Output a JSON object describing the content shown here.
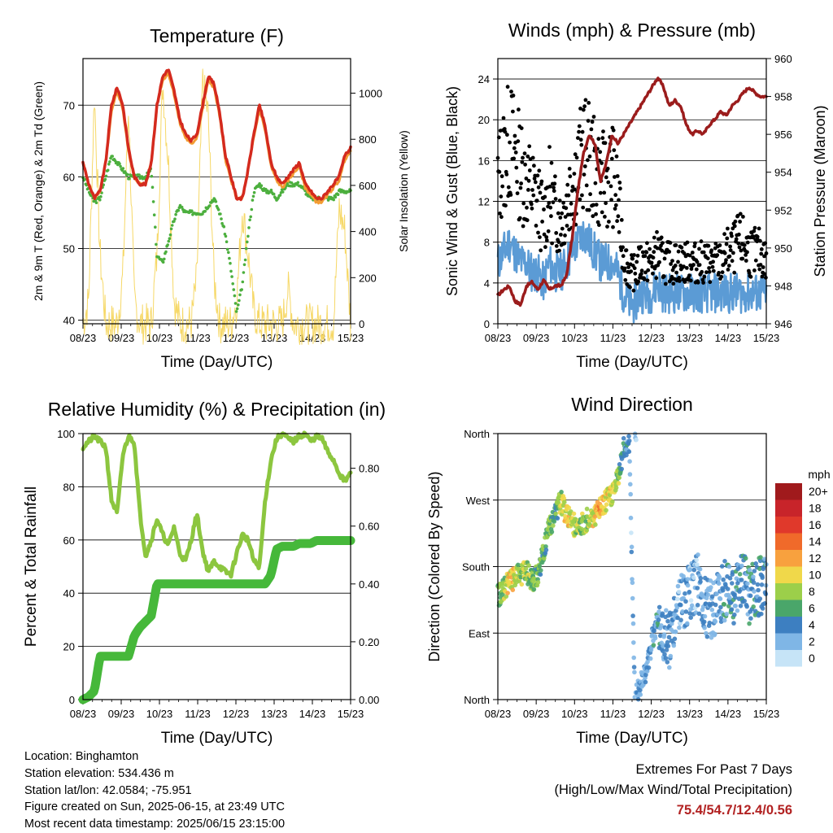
{
  "chart_data": [
    {
      "type": "line",
      "title": "Temperature (F)",
      "xlabel": "Time (Day/UTC)",
      "ylabel": "2m & 9m T (Red, Orange) & 2m Td (Green)",
      "y2label": "Solar Insolation (Yellow)",
      "x_ticks": [
        "08/23",
        "09/23",
        "10/23",
        "11/23",
        "12/23",
        "13/23",
        "14/23",
        "15/23"
      ],
      "ylim": [
        39.5,
        76.5
      ],
      "y_ticks": [
        40,
        50,
        60,
        70
      ],
      "y2lim": [
        0,
        1150
      ],
      "y2_ticks": [
        0,
        200,
        400,
        600,
        800,
        1000
      ],
      "grid": true,
      "colors": {
        "t2m": "#d42a1e",
        "t9m": "#f39c33",
        "td2m": "#4caf3e",
        "solar": "#f6d867"
      },
      "series": [
        {
          "key": "t2m",
          "values": [
            62,
            59,
            57,
            58,
            62,
            70,
            72.5,
            70,
            64,
            60,
            59,
            59,
            62,
            70,
            74,
            75,
            72,
            68,
            66,
            65,
            66,
            70,
            74,
            73,
            69,
            63,
            60,
            57,
            57,
            61,
            66,
            70,
            67,
            62,
            60,
            59,
            60,
            61,
            62,
            59,
            58,
            57,
            57,
            58,
            59,
            60,
            63,
            64
          ]
        },
        {
          "key": "t9m",
          "values": [
            62,
            59,
            57,
            58,
            62,
            69,
            72,
            69.5,
            63.5,
            60,
            59,
            59,
            62,
            70,
            73.5,
            74.5,
            71.5,
            67.5,
            65.5,
            64.5,
            65.5,
            69.5,
            73.5,
            72.5,
            68.5,
            62.5,
            59.5,
            57,
            57,
            61,
            65.5,
            69.5,
            66.5,
            61.5,
            59.5,
            58.5,
            59.5,
            60.5,
            61.5,
            58.5,
            57.5,
            56.5,
            56.5,
            57.5,
            58.5,
            59.5,
            62.5,
            63.5
          ]
        },
        {
          "key": "td2m",
          "values": [
            60,
            58,
            56.5,
            57,
            60,
            63,
            62,
            61,
            60,
            60,
            60,
            60,
            61,
            49,
            48,
            51,
            54,
            56,
            55,
            55,
            55,
            55,
            56,
            57,
            55,
            52,
            47,
            41,
            45,
            52,
            58,
            59,
            58,
            58,
            57,
            58,
            59,
            59,
            59,
            58,
            57,
            57,
            57,
            57,
            57,
            58,
            58,
            58
          ]
        },
        {
          "key": "solar",
          "values": [
            0,
            100,
            1000,
            300,
            0,
            0,
            0,
            200,
            950,
            100,
            0,
            0,
            0,
            300,
            1050,
            700,
            100,
            0,
            0,
            0,
            200,
            1050,
            900,
            200,
            0,
            0,
            0,
            100,
            500,
            300,
            50,
            0,
            0,
            0,
            0,
            0,
            150,
            0,
            0,
            0,
            0,
            0,
            0,
            0,
            0,
            500,
            400,
            0
          ]
        }
      ]
    },
    {
      "type": "scatter",
      "title": "Winds (mph) & Pressure (mb)",
      "xlabel": "Time (Day/UTC)",
      "ylabel": "Sonic Wind & Gust (Blue, Black)",
      "y2label": "Station Pressure (Maroon)",
      "x_ticks": [
        "08/23",
        "09/23",
        "10/23",
        "11/23",
        "12/23",
        "13/23",
        "14/23",
        "15/23"
      ],
      "ylim": [
        0,
        26
      ],
      "y_ticks": [
        0,
        4,
        8,
        12,
        16,
        20,
        24
      ],
      "y2lim": [
        946,
        960
      ],
      "y2_ticks": [
        946,
        948,
        950,
        952,
        954,
        956,
        958,
        960
      ],
      "grid": true,
      "colors": {
        "wind": "#5b9bd5",
        "gust": "#000000",
        "pressure": "#9b1c1c"
      },
      "series": [
        {
          "key": "wind",
          "values": [
            6,
            7,
            8,
            7,
            6,
            6,
            5,
            5,
            4,
            6,
            5,
            5,
            6,
            7,
            8,
            9,
            8,
            7,
            6,
            6,
            6,
            5,
            3,
            2,
            2,
            3,
            3,
            3,
            4,
            3,
            3,
            3,
            3,
            3,
            3,
            3,
            3,
            3,
            3,
            3,
            3,
            3,
            3,
            3,
            3,
            3,
            3,
            3
          ]
        },
        {
          "key": "gust",
          "values": [
            14,
            16,
            18,
            17,
            15,
            14,
            13,
            12,
            10,
            13,
            11,
            10,
            12,
            14,
            15,
            17,
            16,
            15,
            14,
            14,
            15,
            12,
            7,
            5,
            5,
            6,
            6,
            6,
            7,
            6,
            6,
            6,
            6,
            6,
            6,
            6,
            6,
            6,
            6,
            6,
            7,
            7,
            8,
            8,
            7,
            7,
            7,
            6
          ]
        },
        {
          "key": "pressure",
          "values": [
            947.5,
            947.8,
            948,
            947.2,
            947,
            948,
            948.2,
            947.8,
            948.3,
            947.8,
            948,
            948,
            948.5,
            950.5,
            953,
            955,
            956,
            955.5,
            953.5,
            954.5,
            956,
            955.5,
            956,
            956.5,
            957,
            957.5,
            958,
            958.5,
            959,
            958.5,
            957.5,
            957.8,
            957.5,
            956.5,
            956,
            956.2,
            956,
            956.5,
            956.8,
            957.2,
            957,
            957.5,
            957.8,
            958.2,
            958.5,
            958.2,
            958,
            958
          ]
        }
      ]
    },
    {
      "type": "line",
      "title": "Relative Humidity (%) & Precipitation (in)",
      "xlabel": "Time (Day/UTC)",
      "ylabel": "Percent & Total Rainfall",
      "x_ticks": [
        "08/23",
        "09/23",
        "10/23",
        "11/23",
        "12/23",
        "13/23",
        "14/23",
        "15/23"
      ],
      "ylim": [
        0,
        100
      ],
      "y_ticks": [
        0,
        20,
        40,
        60,
        80,
        100
      ],
      "y2lim": [
        0,
        0.92
      ],
      "y2_ticks": [
        "0.00",
        "0.20",
        "0.40",
        "0.60",
        "0.80"
      ],
      "grid": true,
      "colors": {
        "rh": "#8cc63f",
        "precip": "#46b83a"
      },
      "series": [
        {
          "key": "rh",
          "values": [
            95,
            97,
            99,
            97,
            95,
            75,
            70,
            92,
            99,
            97,
            70,
            54,
            60,
            68,
            62,
            58,
            65,
            55,
            52,
            60,
            70,
            56,
            48,
            52,
            50,
            48,
            47,
            55,
            62,
            60,
            52,
            50,
            75,
            90,
            98,
            100,
            98,
            97,
            99,
            100,
            97,
            99,
            98,
            93,
            90,
            85,
            82,
            85
          ]
        },
        {
          "key": "precip",
          "values": [
            0,
            0.01,
            0.03,
            0.15,
            0.15,
            0.15,
            0.15,
            0.15,
            0.15,
            0.22,
            0.25,
            0.27,
            0.29,
            0.4,
            0.4,
            0.4,
            0.4,
            0.4,
            0.4,
            0.4,
            0.4,
            0.4,
            0.4,
            0.4,
            0.4,
            0.4,
            0.4,
            0.4,
            0.4,
            0.4,
            0.4,
            0.4,
            0.4,
            0.43,
            0.52,
            0.53,
            0.53,
            0.53,
            0.54,
            0.54,
            0.54,
            0.55,
            0.55,
            0.55,
            0.55,
            0.55,
            0.55,
            0.55
          ]
        }
      ]
    },
    {
      "type": "scatter",
      "title": "Wind Direction",
      "xlabel": "Time (Day/UTC)",
      "ylabel": "Direction (Colored By Speed)",
      "x_ticks": [
        "08/23",
        "09/23",
        "10/23",
        "11/23",
        "12/23",
        "13/23",
        "14/23",
        "15/23"
      ],
      "ylim": [
        0,
        360
      ],
      "y_tick_labels": [
        "North",
        "East",
        "South",
        "West",
        "North"
      ],
      "grid": true,
      "legend": {
        "title": "mph",
        "placement": "right",
        "labels": [
          "20+",
          "18",
          "16",
          "14",
          "12",
          "10",
          "8",
          "6",
          "4",
          "2",
          "0"
        ],
        "colors": [
          "#a01a1c",
          "#c8242a",
          "#e0392b",
          "#f06a2a",
          "#f8a13e",
          "#f0d84a",
          "#9ccf4a",
          "#4aa66a",
          "#3d7fc1",
          "#7fb6e6",
          "#c6e4f7"
        ]
      },
      "series": [
        {
          "key": "direction",
          "values": [
            140,
            150,
            160,
            165,
            170,
            175,
            160,
            170,
            200,
            235,
            250,
            270,
            250,
            240,
            230,
            240,
            245,
            250,
            260,
            270,
            280,
            300,
            340,
            350,
            0,
            20,
            40,
            80,
            110,
            90,
            80,
            100,
            130,
            140,
            150,
            160,
            130,
            120,
            125,
            140,
            150,
            135,
            150,
            160,
            140,
            150,
            155,
            150
          ]
        },
        {
          "key": "speed",
          "values": [
            6,
            8,
            10,
            9,
            8,
            8,
            7,
            6,
            6,
            7,
            6,
            8,
            10,
            9,
            8,
            7,
            8,
            10,
            12,
            10,
            9,
            8,
            4,
            3,
            2,
            3,
            3,
            3,
            4,
            3,
            3,
            3,
            2,
            3,
            2,
            3,
            3,
            3,
            3,
            3,
            4,
            4,
            4,
            4,
            4,
            4,
            4,
            4
          ]
        }
      ]
    }
  ],
  "footer": {
    "location": "Location: Binghamton",
    "elevation": "Station elevation: 534.436 m",
    "latlon": "Station lat/lon: 42.0584; -75.951",
    "created": "Figure created on Sun, 2025-06-15, at 23:49 UTC",
    "latest": "Most recent data timestamp: 2025/06/15 23:15:00",
    "extremes_title": "Extremes For Past 7 Days",
    "extremes_subtitle": "(High/Low/Max Wind/Total Precipitation)",
    "extremes_values": "75.4/54.7/12.4/0.56"
  }
}
